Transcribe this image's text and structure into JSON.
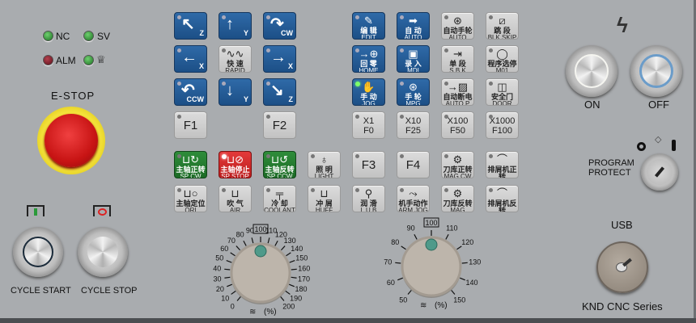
{
  "indicators": [
    {
      "label": "NC",
      "state": "green"
    },
    {
      "label": "SV",
      "state": "green"
    },
    {
      "label": "ALM",
      "state": "red"
    },
    {
      "label": "",
      "icon": "lamp-icon",
      "state": "green"
    }
  ],
  "estop": {
    "label": "E-STOP"
  },
  "buttons": [
    {
      "id": "jog-z-plus",
      "style": "blue",
      "arrow": "↖",
      "axis": "Z"
    },
    {
      "id": "jog-y-plus",
      "style": "blue",
      "arrow": "↑",
      "axis": "Y"
    },
    {
      "id": "spindle-cw",
      "style": "blue",
      "arrow": "↷",
      "axis": "CW"
    },
    {
      "id": "edit",
      "style": "blue",
      "icon": "✎",
      "cn": "编 辑",
      "en": "EDIT"
    },
    {
      "id": "auto",
      "style": "blue",
      "icon": "➡",
      "cn": "自 动",
      "en": "AUTO"
    },
    {
      "id": "auto-mpg",
      "style": "grey",
      "icon": "⊛",
      "cn": "自动手轮",
      "en": "AUTO MPG"
    },
    {
      "id": "blk-skip",
      "style": "grey",
      "icon": "⧄",
      "cn": "跳 段",
      "en": "BLK SKIP"
    },
    {
      "id": "jog-x-minus",
      "style": "blue",
      "arrow": "←",
      "axis": "X"
    },
    {
      "id": "rapid",
      "style": "grey",
      "icon": "∿∿",
      "cn": "快 速",
      "en": "RAPID"
    },
    {
      "id": "jog-x-plus",
      "style": "blue",
      "arrow": "→",
      "axis": "X"
    },
    {
      "id": "home",
      "style": "blue",
      "icon": "→⊕",
      "cn": "回 零",
      "en": "HOME"
    },
    {
      "id": "mdi",
      "style": "blue",
      "icon": "▣",
      "cn": "录 入",
      "en": "MDI"
    },
    {
      "id": "sbk",
      "style": "grey",
      "icon": "⇥",
      "cn": "单 段",
      "en": "S B K"
    },
    {
      "id": "m01",
      "style": "grey",
      "icon": "◯",
      "cn": "程序选停",
      "en": "M01"
    },
    {
      "id": "spindle-ccw",
      "style": "blue",
      "arrow": "↶",
      "axis": "CCW"
    },
    {
      "id": "jog-y-minus",
      "style": "blue",
      "arrow": "↓",
      "axis": "Y"
    },
    {
      "id": "jog-z-minus",
      "style": "blue",
      "arrow": "↘",
      "axis": "Z"
    },
    {
      "id": "jog",
      "style": "blue",
      "icon": "✋",
      "cn": "手 动",
      "en": "JOG",
      "led": "green"
    },
    {
      "id": "mpg",
      "style": "blue",
      "icon": "⊛",
      "cn": "手 轮",
      "en": "MPG"
    },
    {
      "id": "auto-power-off",
      "style": "grey",
      "icon": "→▨",
      "cn": "自动断电",
      "en": "AUTO P OFF"
    },
    {
      "id": "door",
      "style": "grey",
      "icon": "◫",
      "cn": "安全门",
      "en": "DOOR"
    },
    {
      "id": "f1",
      "style": "grey",
      "big": "F1"
    },
    {
      "id": "f2",
      "style": "grey",
      "big": "F2"
    },
    {
      "id": "x1-f0",
      "style": "grey",
      "two": [
        "X1",
        "F0"
      ]
    },
    {
      "id": "x10-f25",
      "style": "grey",
      "two": [
        "X10",
        "F25"
      ]
    },
    {
      "id": "x100-f50",
      "style": "grey",
      "two": [
        "X100",
        "F50"
      ]
    },
    {
      "id": "x1000-f100",
      "style": "grey",
      "two": [
        "X1000",
        "F100"
      ]
    },
    {
      "id": "sp-cw",
      "style": "green",
      "icon": "⊔↻",
      "cn": "主轴正转",
      "en": "SP CW"
    },
    {
      "id": "sp-stop",
      "style": "red",
      "icon": "⊔⊘",
      "cn": "主轴停止",
      "en": "SP STOP",
      "led": "red"
    },
    {
      "id": "sp-ccw",
      "style": "green",
      "icon": "⊔↺",
      "cn": "主轴反转",
      "en": "SP CCW"
    },
    {
      "id": "light",
      "style": "grey",
      "icon": "♁",
      "cn": "照 明",
      "en": "LIGHT"
    },
    {
      "id": "f3",
      "style": "grey",
      "big": "F3"
    },
    {
      "id": "f4",
      "style": "grey",
      "big": "F4"
    },
    {
      "id": "mag-cw",
      "style": "grey",
      "icon": "⚙",
      "cn": "刀库正转",
      "en": "MAG CW"
    },
    {
      "id": "chip-cw",
      "style": "grey",
      "icon": "⌒",
      "cn": "排屑机正转",
      "en": "CHIP CW"
    },
    {
      "id": "ori",
      "style": "grey",
      "icon": "⊔○",
      "cn": "主轴定位",
      "en": "ORI"
    },
    {
      "id": "air-blow",
      "style": "grey",
      "icon": "⊔",
      "cn": "吹 气",
      "en": "AIR BLOW"
    },
    {
      "id": "coolant",
      "style": "grey",
      "icon": "╤",
      "cn": "冷 却",
      "en": "COOLANT"
    },
    {
      "id": "huff",
      "style": "grey",
      "icon": "⊔",
      "cn": "冲 屑",
      "en": "HUFF"
    },
    {
      "id": "lub",
      "style": "grey",
      "icon": "⚲",
      "cn": "润 滑",
      "en": "L U B"
    },
    {
      "id": "arm-jog",
      "style": "grey",
      "icon": "⤳",
      "cn": "机手动作",
      "en": "ARM JOG"
    },
    {
      "id": "mag-ccw",
      "style": "grey",
      "icon": "⚙",
      "cn": "刀库反转",
      "en": "MAG CCW"
    },
    {
      "id": "chip-ccw",
      "style": "grey",
      "icon": "⌒",
      "cn": "排屑机反转",
      "en": "CHIP CCW"
    }
  ],
  "feed_override": {
    "unit": "(%)",
    "ticks": [
      "0",
      "10",
      "20",
      "30",
      "40",
      "50",
      "60",
      "70",
      "80",
      "90",
      "100",
      "110",
      "120",
      "130",
      "140",
      "150",
      "160",
      "170",
      "180",
      "190",
      "200"
    ],
    "value": 100
  },
  "spindle_override": {
    "unit": "(%)",
    "ticks": [
      "50",
      "60",
      "70",
      "80",
      "90",
      "100",
      "110",
      "120",
      "130",
      "140",
      "150"
    ],
    "value": 100
  },
  "cycle": {
    "start_label": "CYCLE START",
    "stop_label": "CYCLE STOP"
  },
  "power": {
    "on_label": "ON",
    "off_label": "OFF"
  },
  "program_protect": {
    "label_line1": "PROGRAM",
    "label_line2": "PROTECT"
  },
  "usb": {
    "label": "USB"
  },
  "brand": {
    "label": "KND CNC Series"
  }
}
